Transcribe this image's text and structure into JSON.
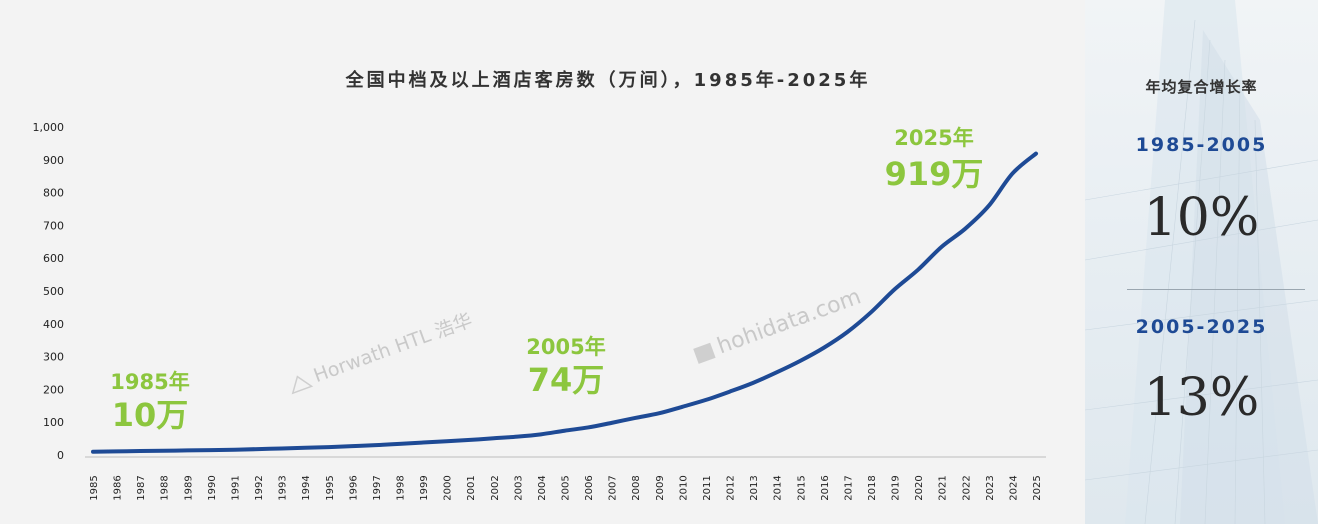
{
  "chart_data": {
    "type": "line",
    "title": "全国中档及以上酒店客房数（万间），1985年-2025年",
    "xlabel": "",
    "ylabel": "",
    "ylim": [
      0,
      1000
    ],
    "yticks": [
      "0",
      "100",
      "200",
      "300",
      "400",
      "500",
      "600",
      "700",
      "800",
      "900",
      "1,000"
    ],
    "yticks_values": [
      0,
      100,
      200,
      300,
      400,
      500,
      600,
      700,
      800,
      900,
      1000
    ],
    "x": [
      "1985",
      "1986",
      "1987",
      "1988",
      "1989",
      "1990",
      "1991",
      "1992",
      "1993",
      "1994",
      "1995",
      "1996",
      "1997",
      "1998",
      "1999",
      "2000",
      "2001",
      "2002",
      "2003",
      "2004",
      "2005",
      "2006",
      "2007",
      "2008",
      "2009",
      "2010",
      "2011",
      "2012",
      "2013",
      "2014",
      "2015",
      "2016",
      "2017",
      "2018",
      "2019",
      "2020",
      "2021",
      "2022",
      "2023",
      "2024",
      "2025"
    ],
    "series": [
      {
        "name": "",
        "color": "#1e4a95",
        "values": [
          10,
          11,
          12,
          13,
          14,
          15,
          16,
          18,
          20,
          22,
          24,
          27,
          30,
          34,
          38,
          42,
          46,
          51,
          56,
          63,
          74,
          84,
          98,
          113,
          127,
          147,
          168,
          193,
          220,
          252,
          287,
          327,
          375,
          435,
          505,
          565,
          635,
          690,
          760,
          858,
          919
        ]
      }
    ],
    "annotations": [
      {
        "year_label": "1985年",
        "value_label": "10万",
        "x": "1985"
      },
      {
        "year_label": "2005年",
        "value_label": "74万",
        "x": "2005"
      },
      {
        "year_label": "2025年",
        "value_label": "919万",
        "x": "2025"
      }
    ],
    "watermarks": [
      "Horwath HTL 浩华",
      "hohidata.com"
    ],
    "line_color": "#1e4a95",
    "callout_color": "#8cc63e"
  },
  "side": {
    "title": "年均复合增长率",
    "period1": "1985-2005",
    "rate1": "10%",
    "period2": "2005-2025",
    "rate2": "13%"
  }
}
